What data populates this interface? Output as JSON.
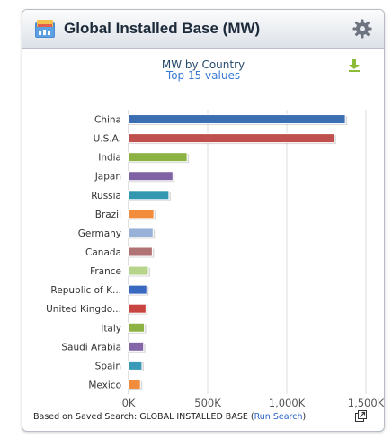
{
  "widget": {
    "title": "Global Installed Base (MW)",
    "header_icon": "folder-chart-icon",
    "settings_icon": "gear-icon"
  },
  "chart": {
    "download_icon": "download-icon"
  },
  "footer": {
    "prefix": "Based on Saved Search: GLOBAL INSTALLED BASE (",
    "link_label": "Run Search",
    "suffix": ")",
    "expand_icon": "expand-icon"
  },
  "chart_data": {
    "type": "bar",
    "orientation": "horizontal",
    "title": "MW by Country",
    "subtitle": "Top 15 values",
    "categories": [
      "China",
      "U.S.A.",
      "India",
      "Japan",
      "Russia",
      "Brazil",
      "Germany",
      "Canada",
      "France",
      "Republic of K...",
      "United Kingdo...",
      "Italy",
      "Saudi Arabia",
      "Spain",
      "Mexico"
    ],
    "values": [
      1370000,
      1300000,
      370000,
      280000,
      255000,
      160000,
      155000,
      150000,
      125000,
      115000,
      110000,
      100000,
      95000,
      85000,
      75000
    ],
    "colors": [
      "#3c6fb2",
      "#c0504d",
      "#8db244",
      "#7f62a4",
      "#3497b0",
      "#f08c3c",
      "#97b1d9",
      "#b07272",
      "#b6d48a",
      "#3868c0",
      "#c94440",
      "#8db244",
      "#8466a8",
      "#3a9ab8",
      "#f08c3c"
    ],
    "xlim": [
      0,
      1500000
    ],
    "xticks": [
      "0K",
      "500K",
      "1,000K",
      "1,500K"
    ],
    "xtick_values": [
      0,
      500000,
      1000000,
      1500000
    ],
    "grid": true,
    "legend": "none"
  }
}
